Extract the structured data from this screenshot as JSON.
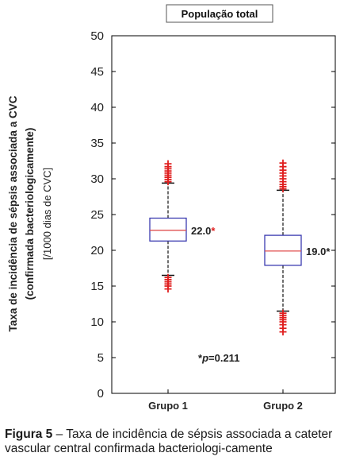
{
  "chart_data": {
    "type": "box",
    "title": "População total",
    "ylabel_line1": "Taxa de incidência de sépsis associada a CVC",
    "ylabel_line2": "(confirmada bacteriologicamente)",
    "ylabel_line3": "[/1000 dias de CVC]",
    "categories": [
      "Grupo 1",
      "Grupo 2"
    ],
    "ylim": [
      0,
      50
    ],
    "yticks": [
      "0",
      "5",
      "10",
      "15",
      "20",
      "25",
      "30",
      "35",
      "40",
      "45",
      "50"
    ],
    "boxes": [
      {
        "category": "Grupo 1",
        "median": 22.8,
        "q1": 21.3,
        "q3": 24.5,
        "whisker_low": 16.5,
        "whisker_high": 29.4,
        "outliers_high": [
          29.6,
          29.9,
          30.2,
          30.5,
          30.8,
          31.1,
          31.4,
          31.7,
          32.1
        ],
        "outliers_low": [
          16.2,
          15.9,
          15.6,
          15.3,
          15.0,
          14.6
        ],
        "label_value": "22.0",
        "label_mark": "*"
      },
      {
        "category": "Grupo 2",
        "median": 19.9,
        "q1": 17.9,
        "q3": 22.1,
        "whisker_low": 11.5,
        "whisker_high": 28.4,
        "outliers_high": [
          28.6,
          28.9,
          29.2,
          29.6,
          30.0,
          30.4,
          30.8,
          31.2,
          31.7,
          32.2
        ],
        "outliers_low": [
          11.2,
          10.9,
          10.6,
          10.3,
          10.0,
          9.6,
          9.1,
          8.6
        ],
        "label_value": "19.0",
        "label_mark": "*"
      }
    ],
    "annotation_mark": "*",
    "annotation_p": "p",
    "annotation_value": "=0.211",
    "colors": {
      "box": "#3b3bb0",
      "median": "#e05050",
      "outlier": "#e02020",
      "axis": "#000000"
    }
  },
  "caption": {
    "label": "Figura 5",
    "text": " – Taxa de incidência de sépsis associada a cateter vascular central confirmada bacteriologi-camente"
  }
}
